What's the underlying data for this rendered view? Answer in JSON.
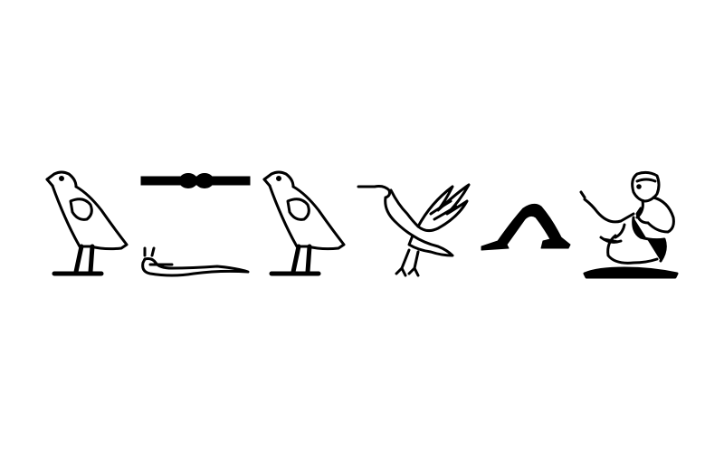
{
  "background_color": "#ffffff",
  "ink_color": "#000000",
  "glyphs": [
    {
      "icon": "vulture-icon"
    },
    {
      "icon": "bolt-icon"
    },
    {
      "icon": "horned-viper-icon"
    },
    {
      "icon": "vulture-icon"
    },
    {
      "icon": "pintail-duck-icon"
    },
    {
      "icon": "walking-legs-icon"
    },
    {
      "icon": "seated-man-icon"
    }
  ]
}
